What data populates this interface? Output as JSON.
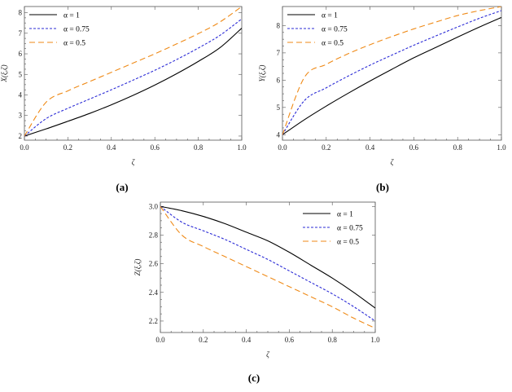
{
  "chart_data": [
    {
      "id": "a",
      "type": "line",
      "caption": "(a)",
      "xlabel": "ζ",
      "ylabel": "X(ξ,ζ)",
      "xlim": [
        0,
        1
      ],
      "ylim": [
        1.8,
        8.3
      ],
      "xticks": [
        "0.0",
        "0.2",
        "0.4",
        "0.6",
        "0.8",
        "1.0"
      ],
      "yticks": [
        "2",
        "3",
        "4",
        "5",
        "6",
        "7",
        "8"
      ],
      "legend_position": "top-left",
      "x": [
        0.0,
        0.1,
        0.2,
        0.3,
        0.4,
        0.5,
        0.6,
        0.7,
        0.8,
        0.9,
        1.0
      ],
      "series": [
        {
          "name": "α = 1",
          "color": "#000000",
          "dash": "solid",
          "values": [
            2.0,
            2.35,
            2.72,
            3.1,
            3.52,
            3.98,
            4.48,
            5.03,
            5.63,
            6.3,
            7.25
          ]
        },
        {
          "name": "α = 0.75",
          "color": "#2b2bd6",
          "dash": "dotted",
          "values": [
            2.0,
            2.85,
            3.35,
            3.8,
            4.25,
            4.72,
            5.2,
            5.72,
            6.28,
            6.9,
            7.7
          ]
        },
        {
          "name": "α = 0.5",
          "color": "#ef8a17",
          "dash": "dashed",
          "values": [
            2.0,
            3.65,
            4.2,
            4.65,
            5.1,
            5.55,
            6.0,
            6.48,
            6.98,
            7.55,
            8.3
          ]
        }
      ]
    },
    {
      "id": "b",
      "type": "line",
      "caption": "(b)",
      "xlabel": "ζ",
      "ylabel": "Y(ξ,ζ)",
      "xlim": [
        0,
        1
      ],
      "ylim": [
        3.8,
        8.7
      ],
      "xticks": [
        "0.0",
        "0.2",
        "0.4",
        "0.6",
        "0.8",
        "1.0"
      ],
      "yticks": [
        "4",
        "5",
        "6",
        "7",
        "8"
      ],
      "legend_position": "top-left",
      "x": [
        0.0,
        0.1,
        0.2,
        0.3,
        0.4,
        0.5,
        0.6,
        0.7,
        0.8,
        0.9,
        1.0
      ],
      "series": [
        {
          "name": "α = 1",
          "color": "#000000",
          "dash": "solid",
          "values": [
            4.0,
            4.55,
            5.05,
            5.52,
            5.97,
            6.4,
            6.82,
            7.2,
            7.58,
            7.95,
            8.3
          ]
        },
        {
          "name": "α = 0.75",
          "color": "#2b2bd6",
          "dash": "dotted",
          "values": [
            4.0,
            5.25,
            5.72,
            6.15,
            6.55,
            6.92,
            7.28,
            7.62,
            7.95,
            8.27,
            8.55
          ]
        },
        {
          "name": "α = 0.5",
          "color": "#ef8a17",
          "dash": "dashed",
          "values": [
            4.0,
            6.1,
            6.58,
            6.97,
            7.3,
            7.6,
            7.88,
            8.13,
            8.37,
            8.55,
            8.7
          ]
        }
      ]
    },
    {
      "id": "c",
      "type": "line",
      "caption": "(c)",
      "xlabel": "ζ",
      "ylabel": "Z(ξ,ζ)",
      "xlim": [
        0,
        1
      ],
      "ylim": [
        2.12,
        3.03
      ],
      "xticks": [
        "0.0",
        "0.2",
        "0.4",
        "0.6",
        "0.8",
        "1.0"
      ],
      "yticks": [
        "2.2",
        "2.4",
        "2.6",
        "2.8",
        "3.0"
      ],
      "legend_position": "top-right",
      "x": [
        0.0,
        0.1,
        0.2,
        0.3,
        0.4,
        0.5,
        0.6,
        0.7,
        0.8,
        0.9,
        1.0
      ],
      "series": [
        {
          "name": "α = 1",
          "color": "#000000",
          "dash": "solid",
          "values": [
            3.0,
            2.97,
            2.93,
            2.88,
            2.82,
            2.76,
            2.68,
            2.59,
            2.5,
            2.4,
            2.29
          ]
        },
        {
          "name": "α = 0.75",
          "color": "#2b2bd6",
          "dash": "dotted",
          "values": [
            3.0,
            2.89,
            2.83,
            2.77,
            2.7,
            2.63,
            2.55,
            2.47,
            2.39,
            2.3,
            2.2
          ]
        },
        {
          "name": "α = 0.5",
          "color": "#ef8a17",
          "dash": "dashed",
          "values": [
            3.0,
            2.8,
            2.72,
            2.65,
            2.58,
            2.51,
            2.44,
            2.37,
            2.3,
            2.22,
            2.15
          ]
        }
      ]
    }
  ]
}
